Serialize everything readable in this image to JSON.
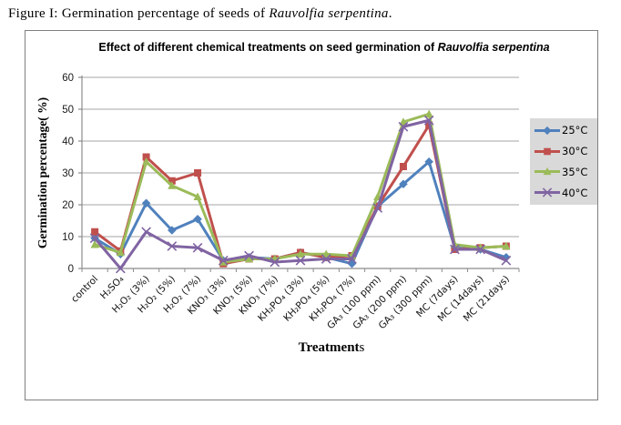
{
  "caption": {
    "prefix": "Figure I: Germination percentage of seeds of ",
    "species": "Rauvolfia serpentina",
    "suffix": "."
  },
  "chart": {
    "title_prefix": "Effect of different chemical treatments on seed germination of ",
    "title_species": "Rauvolfia serpentina",
    "x_axis_title_bold": "Treatment",
    "x_axis_title_tail": "s",
    "y_axis_title": "Germination percentage( %)"
  },
  "colors": {
    "gridline": "#a6a6a6",
    "axis": "#8c8c8c",
    "tick_text": "#1a1a1a",
    "legend_bg": "#d9d9d9",
    "frame_border": "#808080"
  },
  "chart_data": {
    "type": "line",
    "title": "Effect of different chemical treatments on seed germination of Rauvolfia serpentina",
    "xlabel": "Treatments",
    "ylabel": "Germination percentage( %)",
    "ylim": [
      0,
      60
    ],
    "ytick_step": 10,
    "grid": true,
    "legend_position": "right",
    "categories": [
      "control",
      "H₂SO₄",
      "H₂O₂ (3%)",
      "H₂O₂ (5%)",
      "H₂O₂ (7%)",
      "KNO₃ (3%)",
      "KNO₃ (5%)",
      "KNO₃ (7%)",
      "KH₂PO₄ (3%)",
      "KH₂PO₄ (5%)",
      "KH₂PO₄ (7%)",
      "GA₃ (100 ppm)",
      "GA₃ (200 ppm)",
      "GA₃ (300 ppm)",
      "MC (7days)",
      "MC (14days)",
      "MC (21days)"
    ],
    "series": [
      {
        "name": "25°C",
        "color": "#4f81bd",
        "marker": "diamond",
        "values": [
          9.5,
          4.5,
          20.5,
          12,
          15.5,
          2.5,
          3.5,
          3,
          5,
          3.5,
          1.5,
          19.5,
          26.5,
          33.5,
          6.5,
          6,
          3.5
        ]
      },
      {
        "name": "30°C",
        "color": "#c0504d",
        "marker": "square",
        "values": [
          11.5,
          5.5,
          35,
          27.5,
          30,
          1.5,
          3,
          3,
          5,
          3.5,
          4,
          19.5,
          32,
          45,
          6,
          6.5,
          7
        ]
      },
      {
        "name": "35°C",
        "color": "#9bbb59",
        "marker": "triangle",
        "values": [
          7.5,
          5,
          33.5,
          26,
          22.5,
          2,
          3,
          3,
          4.5,
          4.5,
          4,
          22.5,
          46,
          48.5,
          7.5,
          6.5,
          7
        ]
      },
      {
        "name": "40°C",
        "color": "#8064a2",
        "marker": "x",
        "values": [
          9.5,
          0,
          11.5,
          7,
          6.5,
          2.5,
          4,
          2,
          2.5,
          3,
          3,
          19,
          44.5,
          46.5,
          6,
          6,
          2.5
        ]
      }
    ]
  }
}
